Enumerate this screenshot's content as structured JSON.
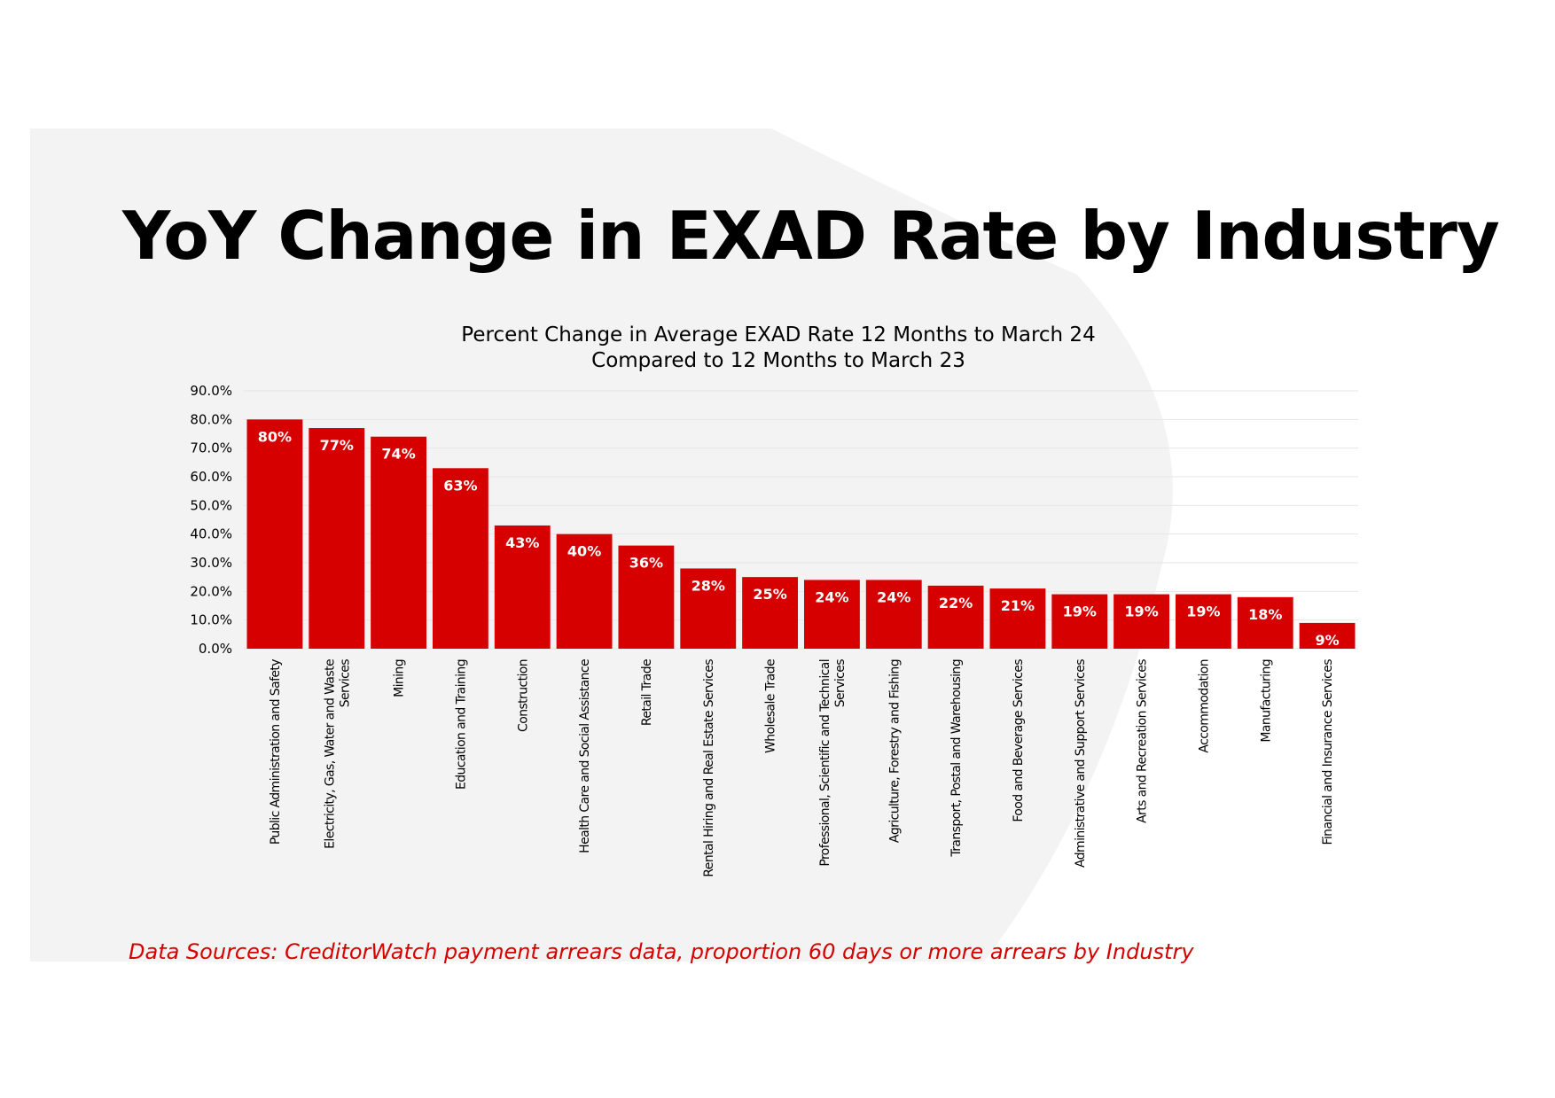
{
  "page": {
    "title": "YoY Change in EXAD Rate by Industry",
    "source_note": "Data Sources: CreditorWatch payment arrears data, proportion 60 days or more arrears by Industry"
  },
  "colors": {
    "bar": "#D60000",
    "source_text": "#D60000",
    "background_shape": "#F3F3F3",
    "gridline": "#E6E6E6"
  },
  "chart_data": {
    "type": "bar",
    "title": "Percent Change in Average EXAD Rate 12 Months to March 24\nCompared to 12 Months to March 23",
    "xlabel": "",
    "ylabel": "",
    "ylim": [
      0,
      90
    ],
    "yticks": [
      "0.0%",
      "10.0%",
      "20.0%",
      "30.0%",
      "40.0%",
      "50.0%",
      "60.0%",
      "70.0%",
      "80.0%",
      "90.0%"
    ],
    "grid": true,
    "categories": [
      "Public Administration and Safety",
      "Electricity, Gas, Water and Waste Services",
      "Mining",
      "Education and Training",
      "Construction",
      "Health Care and Social Assistance",
      "Retail Trade",
      "Rental Hiring and Real Estate Services",
      "Wholesale Trade",
      "Professional, Scientific and Technical Services",
      "Agriculture, Forestry and Fishing",
      "Transport, Postal and Warehousing",
      "Food and Beverage Services",
      "Administrative and Support Services",
      "Arts and Recreation Services",
      "Accommodation",
      "Manufacturing",
      "Financial and Insurance Services"
    ],
    "category_label_lines": [
      [
        "Public Administration and Safety"
      ],
      [
        "Electricity,  Gas, Water and Waste",
        "Services"
      ],
      [
        "Mining"
      ],
      [
        "Education and Training"
      ],
      [
        "Construction"
      ],
      [
        "Health Care and Social Assistance"
      ],
      [
        "Retail Trade"
      ],
      [
        "Rental Hiring and Real Estate Services"
      ],
      [
        "Wholesale Trade"
      ],
      [
        "Professional, Scientific and Technical",
        "Services"
      ],
      [
        "Agriculture, Forestry and Fishing"
      ],
      [
        "Transport, Postal and Warehousing"
      ],
      [
        "Food and Beverage Services"
      ],
      [
        "Administrative and Support Services"
      ],
      [
        "Arts and Recreation Services"
      ],
      [
        "Accommodation"
      ],
      [
        "Manufacturing"
      ],
      [
        "Financial and Insurance Services"
      ]
    ],
    "values": [
      80,
      77,
      74,
      63,
      43,
      40,
      36,
      28,
      25,
      24,
      24,
      22,
      21,
      19,
      19,
      19,
      18,
      9
    ],
    "data_labels": [
      "80%",
      "77%",
      "74%",
      "63%",
      "43%",
      "40%",
      "36%",
      "28%",
      "25%",
      "24%",
      "24%",
      "22%",
      "21%",
      "19%",
      "19%",
      "19%",
      "18%",
      "9%"
    ]
  }
}
